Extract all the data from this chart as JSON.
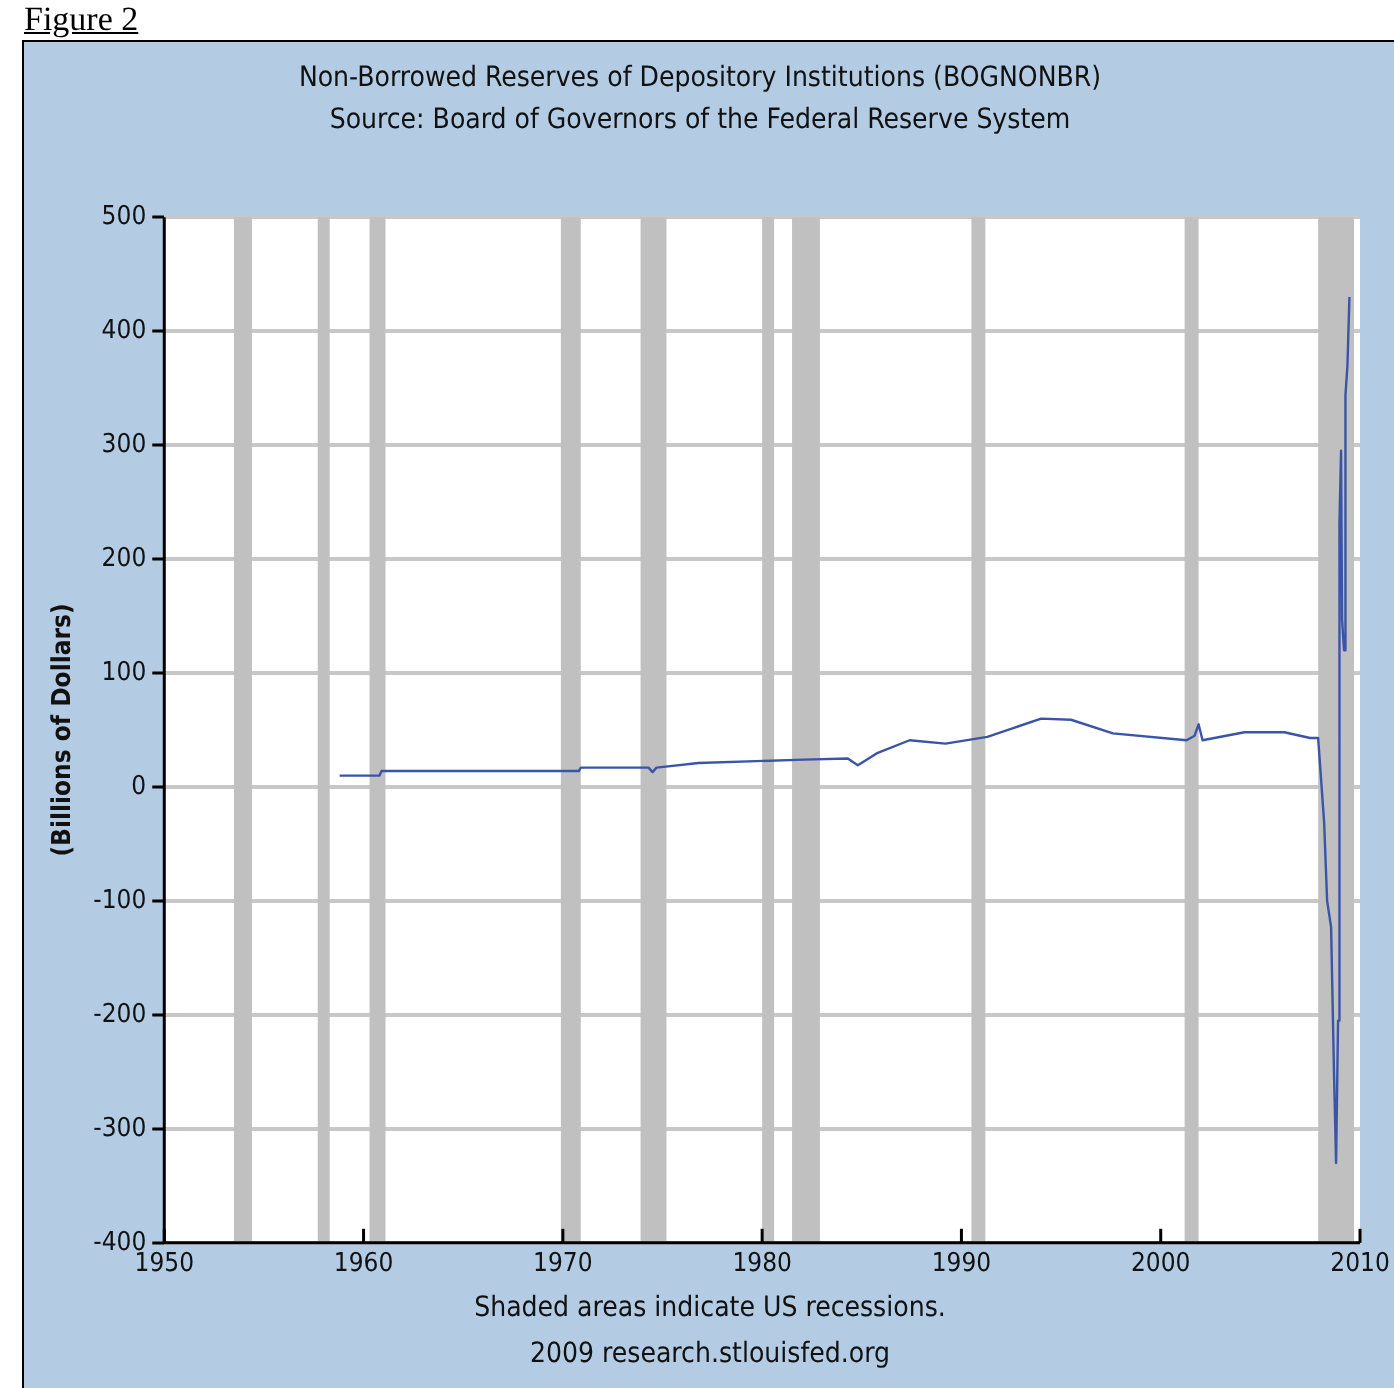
{
  "chart_data": {
    "type": "line",
    "title": "Non-Borrowed Reserves of Depository Institutions (BOGNONBR)",
    "subtitle": "Source: Board of Governors of the Federal Reserve System",
    "ylabel": "(Billions of Dollars)",
    "annotations": [
      "Figure 2",
      "Shaded areas indicate US recessions.",
      "2009 research.stlouisfed.org"
    ],
    "series": [
      {
        "color": "#3a55a8",
        "x": [
          1958.8,
          1960.8,
          1960.9,
          1970.8,
          1970.9,
          1974.3,
          1974.5,
          1974.7,
          1976.8,
          1982.1,
          1984.3,
          1984.8,
          1985.8,
          1987.4,
          1989.2,
          1991.3,
          1994,
          1995.5,
          1997.6,
          2001.3,
          2001.7,
          2001.9,
          2002.1,
          2004.2,
          2006.2,
          2007.5,
          2007.9,
          2008.2,
          2008.35,
          2008.55,
          2008.7,
          2008.8,
          2008.9,
          2008.97,
          2009.05,
          2009.1,
          2009.2,
          2009.27,
          2009.37,
          2009.47
        ],
        "values": [
          10,
          10,
          14,
          14,
          17,
          17,
          13,
          17,
          21,
          24,
          25,
          19,
          30,
          41,
          38,
          44,
          60,
          59,
          47,
          41,
          45,
          55,
          41,
          48,
          48,
          43,
          43,
          -31,
          -100,
          -123,
          -255,
          -330,
          -205,
          232,
          295,
          147,
          120,
          344,
          370,
          430
        ]
      }
    ],
    "xlim": [
      1950,
      2010
    ],
    "xticks": [
      1950,
      1960,
      1970,
      1980,
      1990,
      2000,
      2010
    ],
    "ylim": [
      -400,
      500
    ],
    "yticks": [
      -400,
      -300,
      -200,
      -100,
      0,
      100,
      200,
      300,
      400,
      500
    ],
    "grid": "y",
    "legend": false,
    "marker": "none",
    "line_style": "solid",
    "bands": [
      {
        "axis": "x",
        "from": 1953.5,
        "to": 1954.4,
        "color": "#c0c0c0"
      },
      {
        "axis": "x",
        "from": 1957.7,
        "to": 1958.3,
        "color": "#c0c0c0"
      },
      {
        "axis": "x",
        "from": 1960.3,
        "to": 1961.1,
        "color": "#c0c0c0"
      },
      {
        "axis": "x",
        "from": 1969.9,
        "to": 1970.9,
        "color": "#c0c0c0"
      },
      {
        "axis": "x",
        "from": 1973.9,
        "to": 1975.2,
        "color": "#c0c0c0"
      },
      {
        "axis": "x",
        "from": 1980.0,
        "to": 1980.6,
        "color": "#c0c0c0"
      },
      {
        "axis": "x",
        "from": 1981.5,
        "to": 1982.9,
        "color": "#c0c0c0"
      },
      {
        "axis": "x",
        "from": 1990.5,
        "to": 1991.2,
        "color": "#c0c0c0"
      },
      {
        "axis": "x",
        "from": 2001.2,
        "to": 2001.9,
        "color": "#c0c0c0"
      },
      {
        "axis": "x",
        "from": 2007.9,
        "to": 2009.7,
        "color": "#c0c0c0"
      }
    ]
  }
}
